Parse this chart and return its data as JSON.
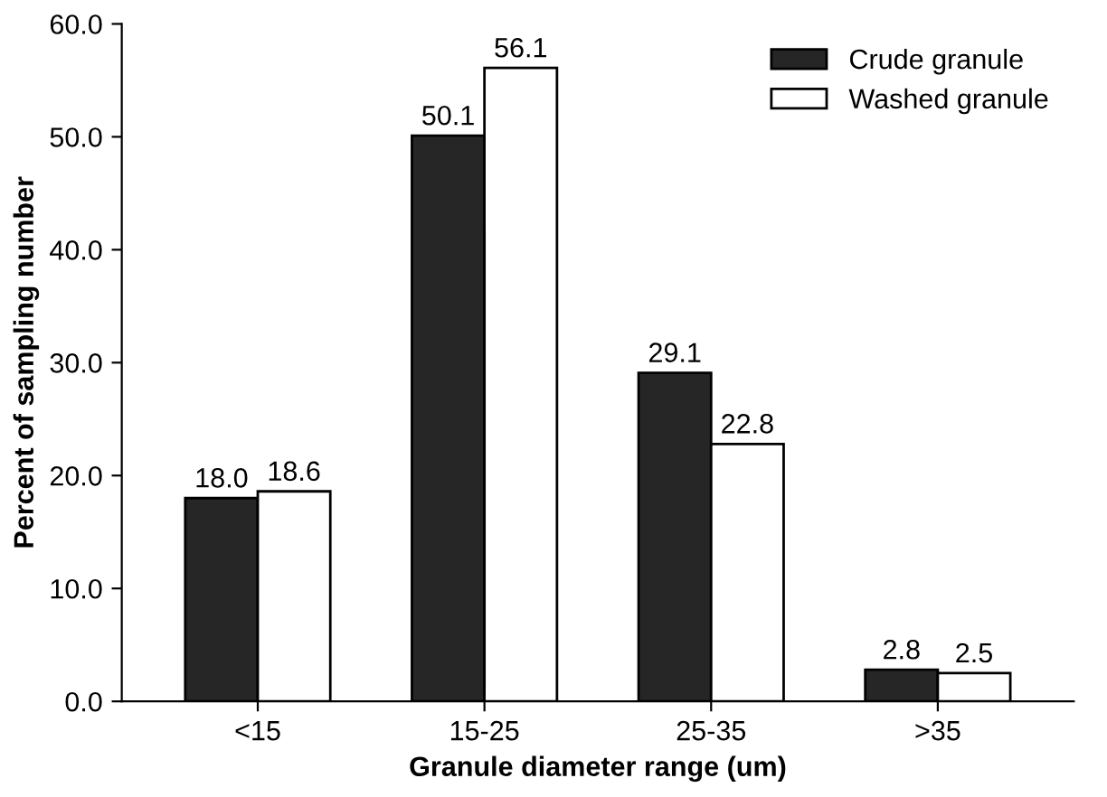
{
  "chart_data": {
    "type": "bar",
    "xlabel": "Granule diameter range (um)",
    "ylabel": "Percent of sampling number",
    "categories": [
      "<15",
      "15-25",
      "25-35",
      ">35"
    ],
    "series": [
      {
        "name": "Crude granule",
        "color": "#262626",
        "values": [
          18.0,
          50.1,
          29.1,
          2.8
        ],
        "value_labels": [
          "18.0",
          "50.1",
          "29.1",
          "2.8"
        ]
      },
      {
        "name": "Washed granule",
        "color": "#ffffff",
        "values": [
          18.6,
          56.1,
          22.8,
          2.5
        ],
        "value_labels": [
          "18.6",
          "56.1",
          "22.8",
          "2.5"
        ]
      }
    ],
    "ylim": [
      0,
      60
    ],
    "yticks": [
      {
        "value": 0,
        "label": "0.0"
      },
      {
        "value": 10,
        "label": "10.0"
      },
      {
        "value": 20,
        "label": "20.0"
      },
      {
        "value": 30,
        "label": "30.0"
      },
      {
        "value": 40,
        "label": "40.0"
      },
      {
        "value": 50,
        "label": "50.0"
      },
      {
        "value": 60,
        "label": "60.0"
      }
    ],
    "legend": "top right",
    "grid": false
  }
}
